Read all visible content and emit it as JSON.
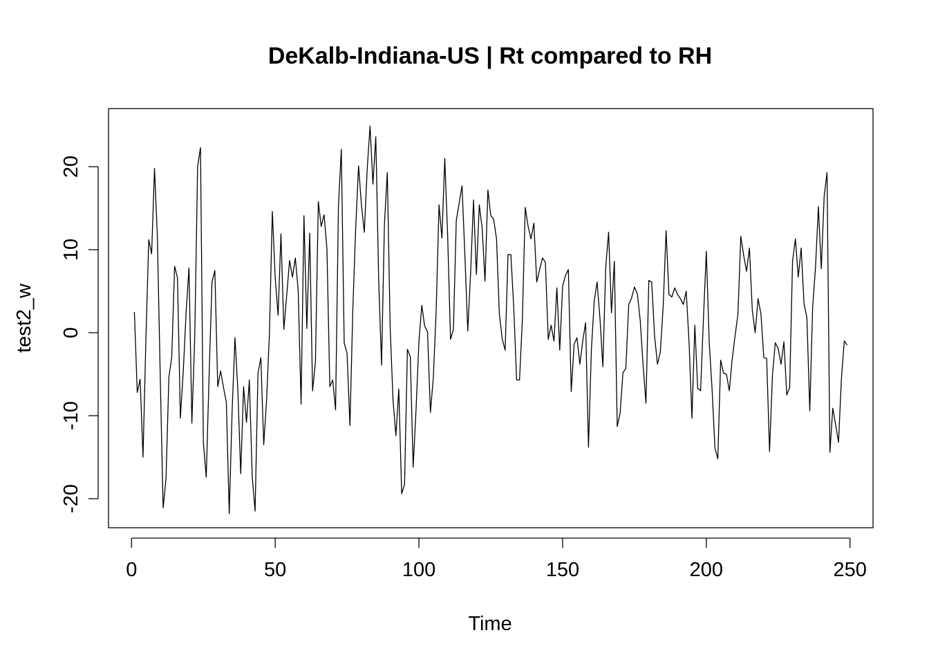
{
  "chart_data": {
    "type": "line",
    "title": "DeKalb-Indiana-US | Rt compared to RH",
    "xlabel": "Time",
    "ylabel": "test2_w",
    "xlim": [
      -8,
      258
    ],
    "ylim": [
      -23.5,
      27
    ],
    "x_ticks": [
      0,
      50,
      100,
      150,
      200,
      250
    ],
    "x_tick_labels": [
      "0",
      "50",
      "100",
      "150",
      "200",
      "250"
    ],
    "y_ticks": [
      -20,
      -10,
      0,
      10,
      20
    ],
    "y_tick_labels": [
      "-20",
      "-10",
      "0",
      "10",
      "20"
    ],
    "grid": false,
    "legend": "none",
    "line_color": "#000000",
    "series": [
      {
        "x_start": 1,
        "values": [
          2.5,
          -7.2,
          -5.6,
          -15,
          -0.9,
          11.2,
          9.5,
          19.8,
          11.6,
          -5.3,
          -21.1,
          -17.6,
          -5.4,
          -2.9,
          8,
          6.6,
          -10.3,
          -4.7,
          2.5,
          7.8,
          -10.9,
          -0.5,
          20,
          22.3,
          -13.2,
          -17.4,
          -5.1,
          6.1,
          7.5,
          -6.5,
          -4.6,
          -6.6,
          -8.4,
          -21.8,
          -9.5,
          -0.6,
          -6.9,
          -17,
          -6.5,
          -10.8,
          -5.7,
          -17.3,
          -21.5,
          -4.9,
          -3,
          -13.5,
          -8.1,
          0,
          14.6,
          6.6,
          2.1,
          11.9,
          0.4,
          4.5,
          8.7,
          6.7,
          9,
          5.1,
          -8.6,
          14.1,
          0.5,
          12,
          -7,
          -3.5,
          15.8,
          12.8,
          14.2,
          10.1,
          -6.5,
          -5.7,
          -9.3,
          15.3,
          22.1,
          -1.2,
          -2.5,
          -11.2,
          2.8,
          12.6,
          20.1,
          15.4,
          12.1,
          19.7,
          24.9,
          17.9,
          23.6,
          6.4,
          -3.9,
          13.1,
          19.3,
          0.6,
          -8.2,
          -12.4,
          -6.8,
          -19.4,
          -18.3,
          -2,
          -2.9,
          -16.2,
          -9.3,
          -1.1,
          3.3,
          0.8,
          0.1,
          -9.6,
          -5.5,
          2.6,
          15.4,
          11.4,
          21,
          11.7,
          -0.8,
          0.4,
          13.5,
          15.6,
          17.7,
          9.3,
          0.2,
          7.3,
          16,
          7,
          15.4,
          12.6,
          6.2,
          17.2,
          14.1,
          13.7,
          11.3,
          2.2,
          -0.8,
          -2.1,
          9.4,
          9.4,
          3,
          -5.7,
          -5.7,
          1.6,
          15.1,
          12.8,
          11.3,
          13.2,
          6.1,
          7.6,
          9,
          8.5,
          -0.8,
          0.9,
          -1,
          5.4,
          -2.1,
          5.6,
          6.9,
          7.6,
          -7.1,
          -1.4,
          -0.6,
          -3.8,
          -1,
          1.2,
          -13.8,
          -2.1,
          3.8,
          6.1,
          1.7,
          -4.1,
          7.9,
          12.1,
          2.4,
          8.6,
          -11.3,
          -9.7,
          -4.8,
          -4.3,
          3.4,
          4.2,
          5.5,
          4.7,
          1.5,
          -3.9,
          -8.5,
          6.3,
          6.1,
          -0.4,
          -3.8,
          -2.3,
          3.2,
          12.3,
          4.6,
          4.3,
          5.4,
          4.6,
          4.1,
          3.4,
          5,
          -1.2,
          -10.3,
          0.9,
          -6.7,
          -7,
          1.7,
          9.8,
          -1.1,
          -6.8,
          -13.9,
          -15.2,
          -3.3,
          -4.9,
          -5,
          -7,
          -3.2,
          -0.4,
          2.2,
          11.6,
          9.3,
          7.4,
          10.2,
          2.7,
          0,
          4.1,
          2.3,
          -3,
          -3.1,
          -14.3,
          -5.2,
          -1.2,
          -1.9,
          -3.8,
          -1.1,
          -7.5,
          -6.6,
          8.6,
          11.3,
          6.7,
          10.2,
          3.5,
          1.8,
          -9.4,
          3.1,
          7.9,
          15.2,
          7.7,
          16.4,
          19.3,
          -14.4,
          -9.1,
          -11.1,
          -13.2,
          -5.6,
          -1,
          -1.5
        ]
      }
    ]
  }
}
